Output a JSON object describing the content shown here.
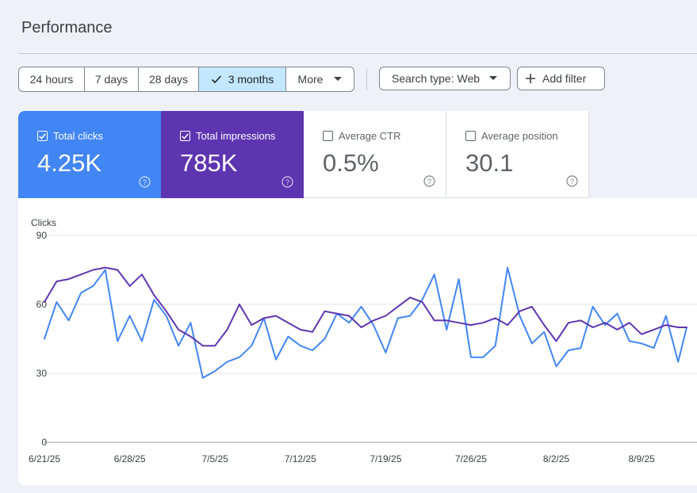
{
  "header": {
    "title": "Performance"
  },
  "date_range": {
    "options": [
      "24 hours",
      "7 days",
      "28 days",
      "3 months"
    ],
    "selected": "3 months",
    "more_label": "More"
  },
  "filters": {
    "search_type": "Search type: Web",
    "add_filter": "Add filter"
  },
  "metrics": [
    {
      "label": "Total clicks",
      "value": "4.25K",
      "checked": true,
      "color": "#4285f4"
    },
    {
      "label": "Total impressions",
      "value": "785K",
      "checked": true,
      "color": "#5e35b1"
    },
    {
      "label": "Average CTR",
      "value": "0.5%",
      "checked": false,
      "color": "#ffffff"
    },
    {
      "label": "Average position",
      "value": "30.1",
      "checked": false,
      "color": "#ffffff"
    }
  ],
  "chart_data": {
    "type": "line",
    "ylabel": "Clicks",
    "ylim": [
      0,
      90
    ],
    "yticks": [
      0,
      30,
      60,
      90
    ],
    "x_tick_labels": [
      "6/21/25",
      "6/28/25",
      "7/5/25",
      "7/12/25",
      "7/19/25",
      "7/26/25",
      "8/2/25",
      "8/9/25"
    ],
    "x_tick_days": [
      0,
      7,
      14,
      21,
      28,
      35,
      42,
      49
    ],
    "grid": true,
    "series": [
      {
        "color": "#4285f4",
        "axis": "left",
        "x": [
          0,
          1,
          2,
          3,
          4,
          5,
          6,
          7,
          8,
          9,
          10,
          11,
          12,
          13,
          14,
          15,
          16,
          17,
          18,
          19,
          20,
          21,
          22,
          23,
          24,
          25,
          26,
          27,
          28,
          29,
          30,
          31,
          32,
          33,
          34,
          35,
          36,
          37,
          38,
          39,
          40,
          41,
          42,
          43,
          44,
          45,
          46,
          47,
          48,
          49,
          50,
          51,
          52,
          52.7
        ],
        "values": [
          45,
          61,
          53,
          65,
          68,
          75,
          44,
          55,
          44,
          62,
          55,
          42,
          52,
          28,
          31,
          35,
          37,
          42,
          54,
          36,
          46,
          42,
          40,
          45,
          56,
          52,
          59,
          51,
          39,
          54,
          55,
          62,
          73,
          49,
          71,
          37,
          37,
          42,
          76,
          55,
          43,
          48,
          33,
          40,
          41,
          59,
          51,
          56,
          44,
          43,
          41,
          55,
          35,
          50
        ]
      },
      {
        "color": "#5e35b1",
        "axis": "right",
        "x": [
          0,
          1,
          2,
          3,
          4,
          5,
          6,
          7,
          8,
          9,
          10,
          11,
          12,
          13,
          14,
          15,
          16,
          17,
          18,
          19,
          20,
          21,
          22,
          23,
          24,
          25,
          26,
          27,
          28,
          29,
          30,
          31,
          32,
          33,
          34,
          35,
          36,
          37,
          38,
          39,
          40,
          41,
          42,
          43,
          44,
          45,
          46,
          47,
          48,
          49,
          50,
          51,
          52,
          52.7
        ],
        "values": [
          61,
          70,
          71,
          73,
          75,
          76,
          75,
          68,
          73,
          64,
          57,
          49,
          46,
          42,
          42,
          49,
          60,
          51,
          54,
          55,
          52,
          49,
          48,
          57,
          56,
          55,
          50,
          53,
          55,
          59,
          63,
          61,
          53,
          53,
          52,
          51,
          52,
          54,
          51,
          57,
          59,
          51,
          44,
          52,
          53,
          50,
          52,
          49,
          52,
          47,
          49,
          51,
          50,
          50
        ]
      }
    ]
  }
}
